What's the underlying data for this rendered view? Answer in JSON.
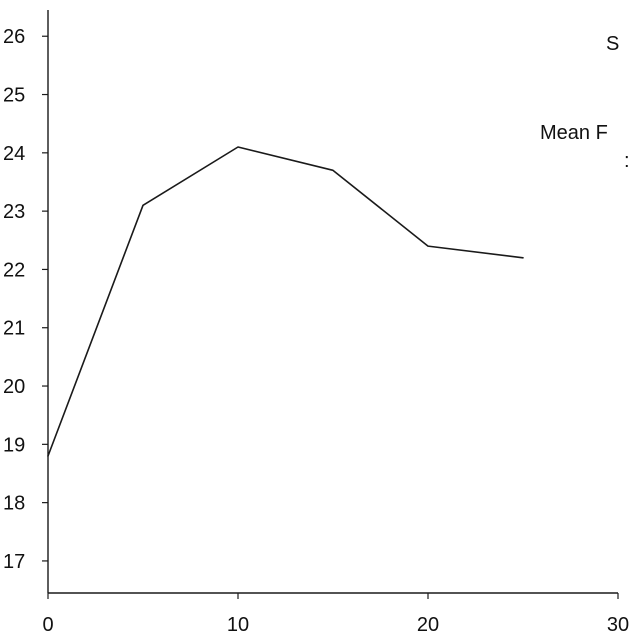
{
  "chart_data": {
    "type": "line",
    "title": "",
    "xlabel": "",
    "ylabel": "",
    "x": [
      0,
      5,
      10,
      15,
      20,
      25
    ],
    "series": [
      {
        "values": [
          18.8,
          23.1,
          24.1,
          23.7,
          22.4,
          22.2
        ]
      }
    ],
    "xlim": [
      0,
      30
    ],
    "ylim": [
      16.45,
      26.45
    ],
    "xticks": [
      0,
      10,
      20,
      30
    ],
    "yticks": [
      17,
      18,
      19,
      20,
      21,
      22,
      23,
      24,
      25,
      26
    ],
    "grid": false,
    "annotations": [
      {
        "text": "S"
      },
      {
        "text": "Mean F"
      },
      {
        "text": ":"
      }
    ],
    "colors": {
      "line": "#1a1a1a",
      "axis": "#1a1a1a"
    }
  }
}
